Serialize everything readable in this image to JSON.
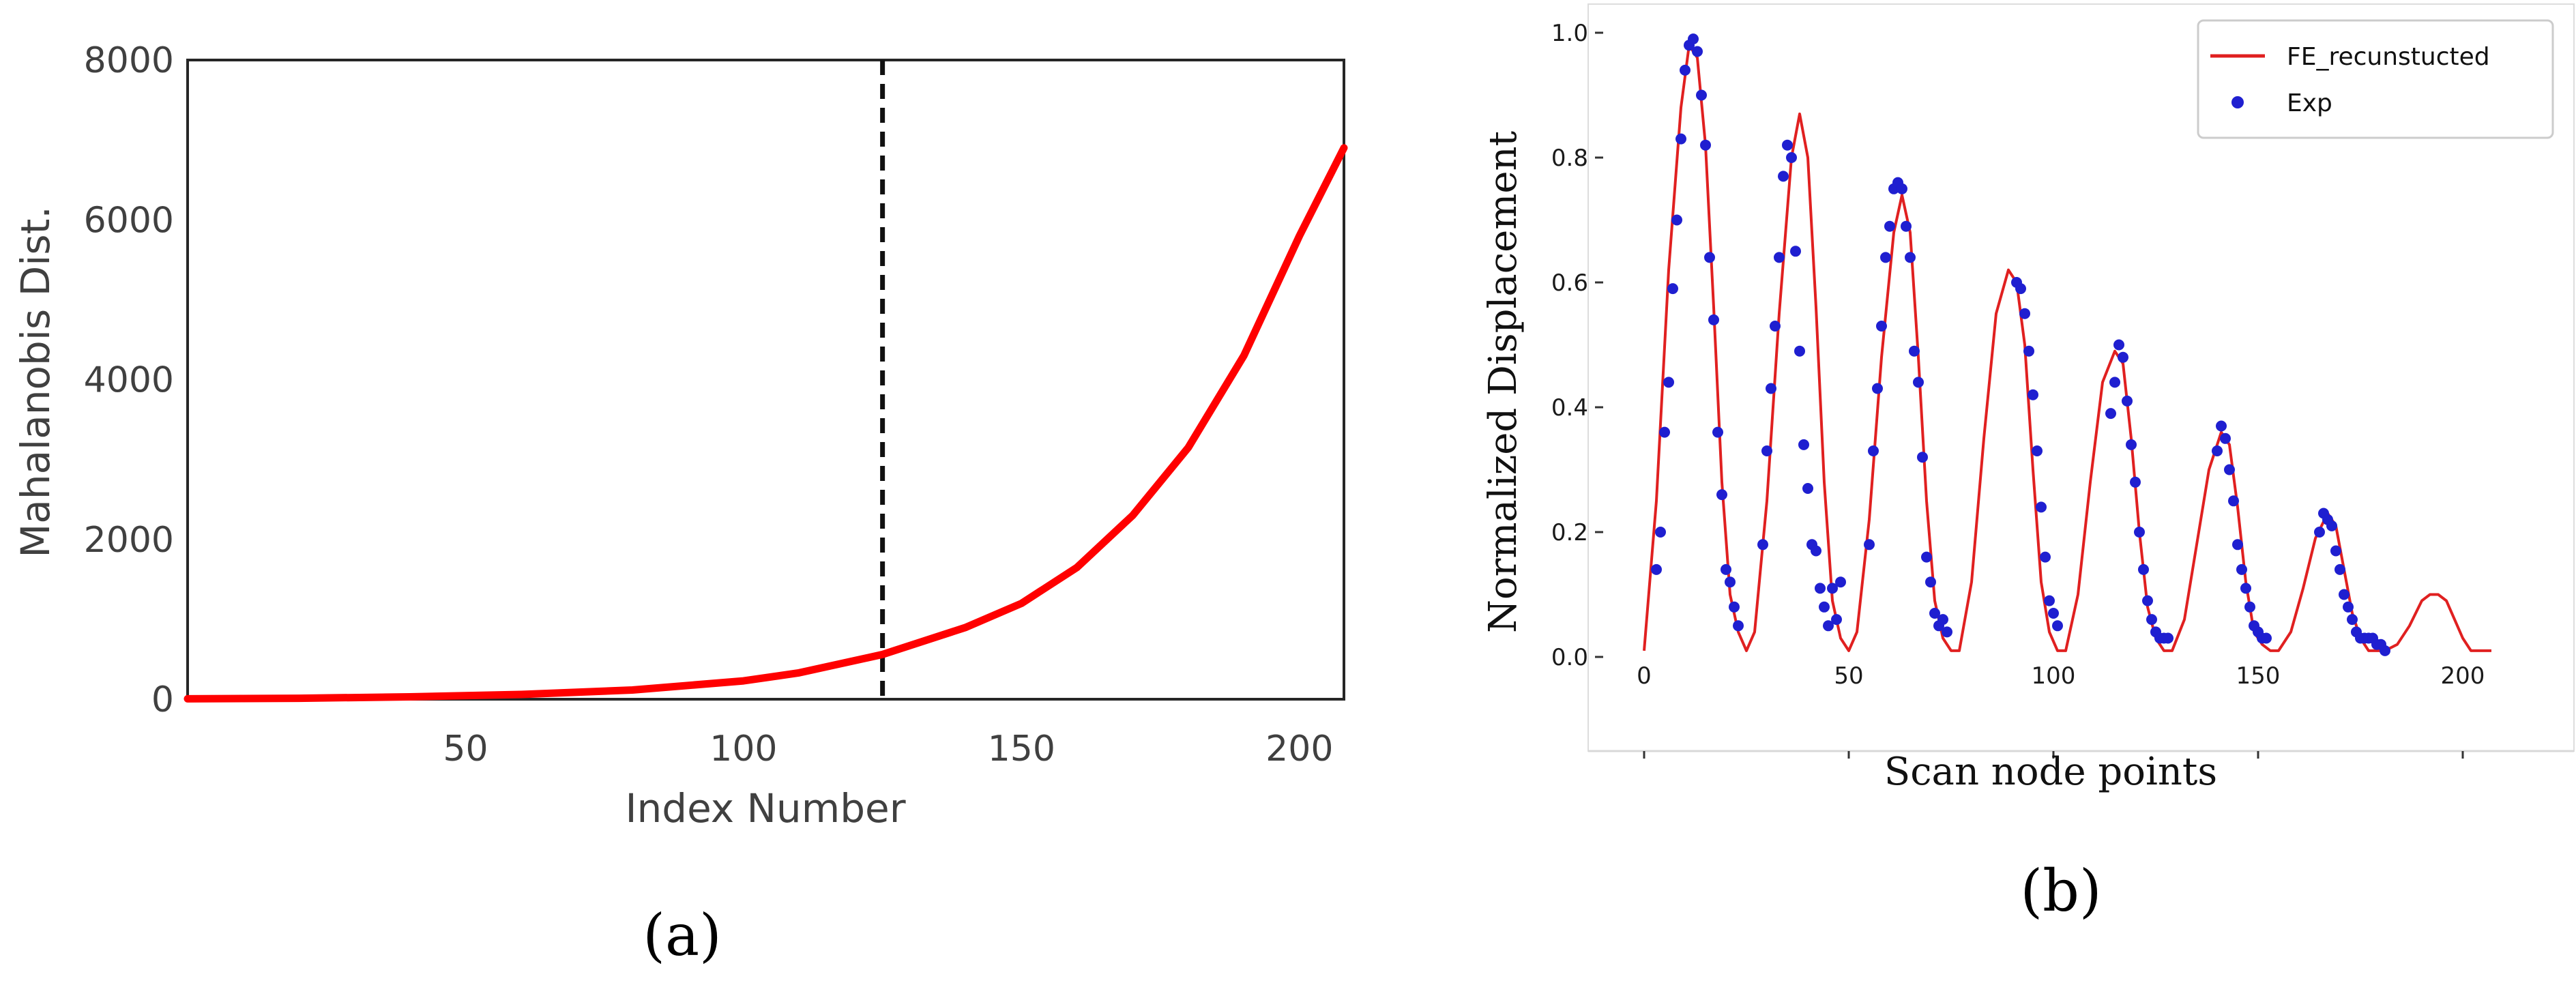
{
  "chart_data": [
    {
      "type": "line",
      "caption": "(a)",
      "xlabel": "Index Number",
      "ylabel": "Mahalanobis Dist.",
      "xlim": [
        0,
        208
      ],
      "ylim": [
        0,
        8000
      ],
      "xticks": [
        50,
        100,
        150,
        200
      ],
      "yticks": [
        0,
        2000,
        4000,
        6000,
        8000
      ],
      "grid": false,
      "legend": "none",
      "threshold_index": 125,
      "series": [
        {
          "color": "#ff0000",
          "x": [
            0,
            20,
            40,
            60,
            80,
            100,
            110,
            125,
            140,
            150,
            160,
            170,
            180,
            190,
            200,
            208
          ],
          "y": [
            5,
            12,
            30,
            60,
            115,
            230,
            330,
            560,
            900,
            1200,
            1650,
            2300,
            3150,
            4300,
            5800,
            6900
          ]
        }
      ]
    },
    {
      "type": "line",
      "caption": "(b)",
      "xlabel": "Scan node points",
      "ylabel": "Normalized Displacement",
      "xlim": [
        -12,
        220
      ],
      "ylim": [
        -0.05,
        1.02
      ],
      "xticks": [
        0,
        50,
        100,
        150,
        200
      ],
      "yticks": [
        0.0,
        0.2,
        0.4,
        0.6,
        0.8,
        1.0
      ],
      "grid": false,
      "legend": "top-right",
      "series": [
        {
          "name": "FE_recunstucted",
          "color": "#e02020",
          "style": "line",
          "x": [
            0,
            3,
            6,
            9,
            11,
            13,
            15,
            17,
            19,
            21,
            23,
            25,
            27,
            30,
            33,
            36,
            38,
            40,
            42,
            44,
            46,
            48,
            50,
            52,
            55,
            58,
            61,
            63,
            65,
            67,
            69,
            71,
            73,
            75,
            77,
            80,
            83,
            86,
            89,
            91,
            93,
            95,
            97,
            99,
            101,
            103,
            106,
            109,
            112,
            115,
            117,
            119,
            121,
            123,
            125,
            127,
            129,
            132,
            135,
            138,
            141,
            143,
            145,
            147,
            149,
            151,
            153,
            155,
            158,
            161,
            164,
            167,
            169,
            171,
            173,
            175,
            177,
            179,
            181,
            184,
            187,
            190,
            192,
            194,
            196,
            198,
            200,
            202,
            204,
            207
          ],
          "y": [
            0.01,
            0.25,
            0.62,
            0.88,
            0.98,
            0.96,
            0.82,
            0.56,
            0.28,
            0.1,
            0.04,
            0.01,
            0.04,
            0.25,
            0.55,
            0.8,
            0.87,
            0.8,
            0.56,
            0.28,
            0.09,
            0.03,
            0.01,
            0.04,
            0.22,
            0.48,
            0.68,
            0.74,
            0.68,
            0.48,
            0.25,
            0.09,
            0.03,
            0.01,
            0.01,
            0.12,
            0.35,
            0.55,
            0.62,
            0.6,
            0.5,
            0.3,
            0.12,
            0.04,
            0.01,
            0.01,
            0.1,
            0.28,
            0.44,
            0.49,
            0.47,
            0.35,
            0.2,
            0.08,
            0.03,
            0.01,
            0.01,
            0.06,
            0.18,
            0.3,
            0.36,
            0.34,
            0.24,
            0.12,
            0.04,
            0.02,
            0.01,
            0.01,
            0.04,
            0.11,
            0.19,
            0.23,
            0.21,
            0.14,
            0.07,
            0.03,
            0.01,
            0.01,
            0.01,
            0.02,
            0.05,
            0.09,
            0.1,
            0.1,
            0.09,
            0.06,
            0.03,
            0.01,
            0.01,
            0.01
          ]
        },
        {
          "name": "Exp",
          "color": "#1f1fd0",
          "style": "dots",
          "x": [
            3,
            4,
            5,
            6,
            7,
            8,
            9,
            10,
            11,
            12,
            13,
            14,
            15,
            16,
            17,
            18,
            19,
            20,
            21,
            22,
            23,
            29,
            30,
            31,
            32,
            33,
            34,
            35,
            36,
            37,
            38,
            39,
            40,
            41,
            42,
            43,
            44,
            45,
            46,
            47,
            48,
            55,
            56,
            57,
            58,
            59,
            60,
            61,
            62,
            63,
            64,
            65,
            66,
            67,
            68,
            69,
            70,
            71,
            72,
            73,
            74,
            91,
            92,
            93,
            94,
            95,
            96,
            97,
            98,
            99,
            100,
            101,
            114,
            115,
            116,
            117,
            118,
            119,
            120,
            121,
            122,
            123,
            124,
            125,
            126,
            127,
            128,
            140,
            141,
            142,
            143,
            144,
            145,
            146,
            147,
            148,
            149,
            150,
            151,
            152,
            165,
            166,
            167,
            168,
            169,
            170,
            171,
            172,
            173,
            174,
            175,
            176,
            177,
            178,
            179,
            180,
            181
          ],
          "y": [
            0.14,
            0.2,
            0.36,
            0.44,
            0.59,
            0.7,
            0.83,
            0.94,
            0.98,
            0.99,
            0.97,
            0.9,
            0.82,
            0.64,
            0.54,
            0.36,
            0.26,
            0.14,
            0.12,
            0.08,
            0.05,
            0.18,
            0.33,
            0.43,
            0.53,
            0.64,
            0.77,
            0.82,
            0.8,
            0.65,
            0.49,
            0.34,
            0.27,
            0.18,
            0.17,
            0.11,
            0.08,
            0.05,
            0.11,
            0.06,
            0.12,
            0.18,
            0.33,
            0.43,
            0.53,
            0.64,
            0.69,
            0.75,
            0.76,
            0.75,
            0.69,
            0.64,
            0.49,
            0.44,
            0.32,
            0.16,
            0.12,
            0.07,
            0.05,
            0.06,
            0.04,
            0.6,
            0.59,
            0.55,
            0.49,
            0.42,
            0.33,
            0.24,
            0.16,
            0.09,
            0.07,
            0.05,
            0.39,
            0.44,
            0.5,
            0.48,
            0.41,
            0.34,
            0.28,
            0.2,
            0.14,
            0.09,
            0.06,
            0.04,
            0.03,
            0.03,
            0.03,
            0.33,
            0.37,
            0.35,
            0.3,
            0.25,
            0.18,
            0.14,
            0.11,
            0.08,
            0.05,
            0.04,
            0.03,
            0.03,
            0.2,
            0.23,
            0.22,
            0.21,
            0.17,
            0.14,
            0.1,
            0.08,
            0.06,
            0.04,
            0.03,
            0.03,
            0.03,
            0.03,
            0.02,
            0.02,
            0.01
          ]
        }
      ]
    }
  ]
}
